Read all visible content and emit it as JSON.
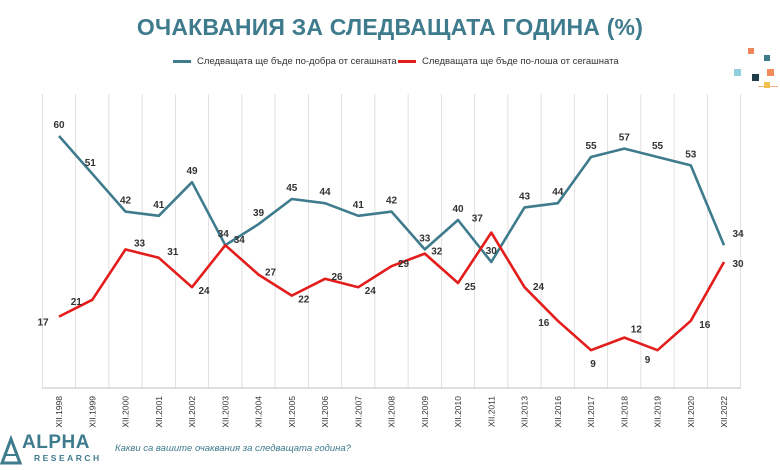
{
  "title": "ОЧАКВАНИЯ ЗА СЛЕДВАЩАТА ГОДИНА (%)",
  "question": "Какви са вашите очаквания за следващата година?",
  "logo": {
    "line1": "ALPHA",
    "line2": "RESEARCH"
  },
  "colors": {
    "better": "#3e7b8d",
    "worse": "#e31c1c",
    "accent": "#3e7b8d"
  },
  "chart_data": {
    "type": "line",
    "title": "ОЧАКВАНИЯ ЗА СЛЕДВАЩАТА ГОДИНА (%)",
    "categories": [
      "XII.1998",
      "XII.1999",
      "XII.2000",
      "XII.2001",
      "XII.2002",
      "XII.2003",
      "XII.2004",
      "XII.2005",
      "XII.2006",
      "XII.2007",
      "XII.2008",
      "XII.2009",
      "XII.2010",
      "XII.2011",
      "XII.2013",
      "XII.2016",
      "XII.2017",
      "XII.2018",
      "XII.2019",
      "XII.2020",
      "XII.2022"
    ],
    "series": [
      {
        "name": "Следващата ще бъде по-добра от сегашната",
        "color": "#3e7b8d",
        "values": [
          60,
          51,
          42,
          41,
          49,
          34,
          39,
          45,
          44,
          41,
          42,
          33,
          40,
          30,
          43,
          44,
          55,
          57,
          55,
          53,
          34
        ]
      },
      {
        "name": "Следващата ще бъде по-лоша от сегашната",
        "color": "#e31c1c",
        "values": [
          17,
          21,
          33,
          31,
          24,
          34,
          27,
          22,
          26,
          24,
          29,
          32,
          25,
          37,
          24,
          16,
          9,
          12,
          9,
          16,
          30
        ]
      }
    ],
    "ylim": [
      0,
      70
    ],
    "grid": true,
    "legend": "top"
  }
}
